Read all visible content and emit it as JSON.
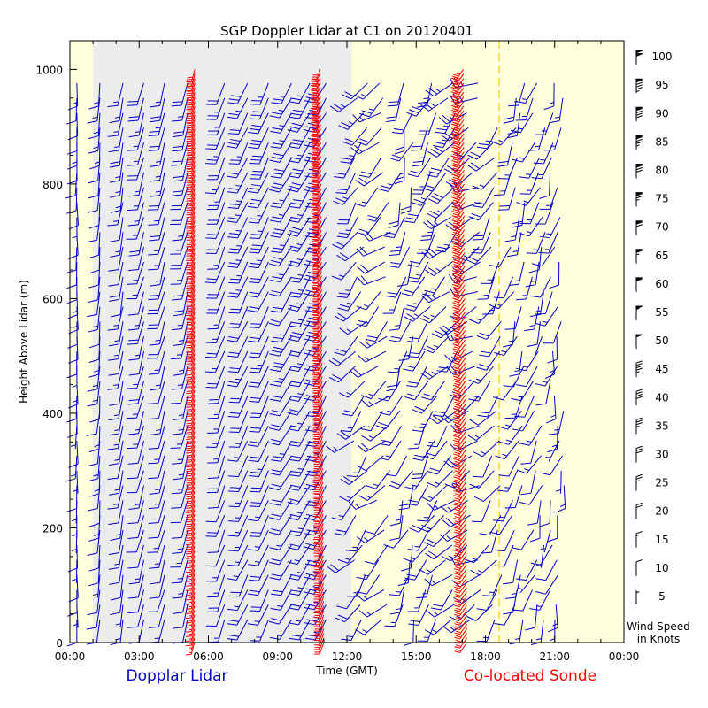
{
  "chart_data": {
    "type": "wind-barb",
    "title": "SGP Doppler Lidar at C1 on 20120401",
    "xlabel": "Time (GMT)",
    "ylabel": "Height Above Lidar (m)",
    "x_ticks": [
      "00:00",
      "03:00",
      "06:00",
      "09:00",
      "12:00",
      "15:00",
      "18:00",
      "21:00",
      "00:00"
    ],
    "x_range_hours": [
      0,
      24
    ],
    "y_ticks": [
      0,
      200,
      400,
      600,
      800,
      1000
    ],
    "y_range": [
      0,
      1050
    ],
    "legend_left": "Dopplar Lidar",
    "legend_right": "Co-located Sonde",
    "scale_title": "Wind Speed",
    "scale_unit": "in Knots",
    "scale_knots": [
      5,
      10,
      15,
      20,
      25,
      30,
      35,
      40,
      45,
      50,
      55,
      60,
      65,
      70,
      75,
      80,
      85,
      90,
      95,
      100
    ],
    "colors": {
      "lidar": "#0000cc",
      "sonde": "#ff0000",
      "night_shade": "#ececec",
      "day_shade": "#ffffdd",
      "marker_line": "#ffcc00"
    },
    "night_interval_hours": [
      1.0,
      12.2
    ],
    "marker_time_hours": 18.6,
    "lidar_times_hours": [
      0.3,
      1.3,
      2.3,
      3.2,
      4.1,
      5.1,
      6.7,
      7.7,
      8.6,
      9.6,
      10.4,
      11.1,
      12.6,
      13.6,
      14.6,
      15.6,
      16.5,
      17.5,
      18.4,
      19.4,
      20.3,
      21.1
    ],
    "lidar_max_height_m": [
      1000,
      1000,
      1000,
      1000,
      1000,
      1000,
      1000,
      1000,
      1000,
      1000,
      1000,
      1000,
      1000,
      1000,
      1000,
      1000,
      1000,
      1000,
      900,
      1000,
      1000,
      1000
    ],
    "lidar_speed_knots": [
      12,
      14,
      16,
      18,
      20,
      20,
      22,
      26,
      28,
      30,
      30,
      32,
      24,
      20,
      22,
      26,
      28,
      24,
      20,
      18,
      16,
      14
    ],
    "lidar_dir_deg": [
      180,
      185,
      190,
      195,
      195,
      195,
      200,
      205,
      205,
      210,
      210,
      210,
      220,
      230,
      200,
      210,
      225,
      240,
      215,
      205,
      200,
      195
    ],
    "sonde_profiles": [
      {
        "time_hours": 5.4,
        "speed_knots": 30,
        "dir_deg": 195
      },
      {
        "time_hours": 11.0,
        "speed_knots": 45,
        "dir_deg": 200
      },
      {
        "time_hours": 17.2,
        "speed_knots": 40,
        "dir_deg": 215
      }
    ]
  }
}
